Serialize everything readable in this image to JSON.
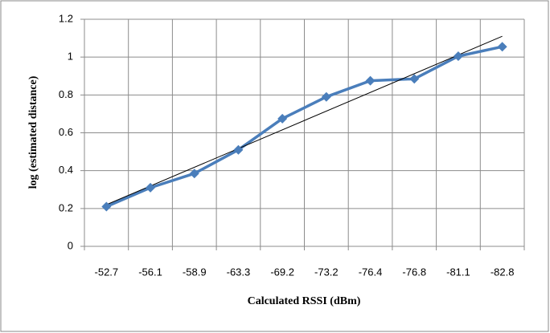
{
  "chart_data": {
    "type": "line",
    "x_label": "Calculated RSSI (dBm)",
    "y_label": "log (estimated distance)",
    "categories": [
      "-52.7",
      "-56.1",
      "-58.9",
      "-63.3",
      "-69.2",
      "-73.2",
      "-76.4",
      "-76.8",
      "-81.1",
      "-82.8"
    ],
    "values": [
      0.21,
      0.31,
      0.385,
      0.51,
      0.675,
      0.79,
      0.875,
      0.885,
      1.005,
      1.055
    ],
    "color": "#4a7ebb",
    "trendline": [
      0.22,
      1.11
    ],
    "trendline_color": "#000000",
    "ylim": [
      0,
      1.2
    ],
    "yticks": [
      0,
      0.2,
      0.4,
      0.6,
      0.8,
      1,
      1.2
    ],
    "grid": true
  }
}
